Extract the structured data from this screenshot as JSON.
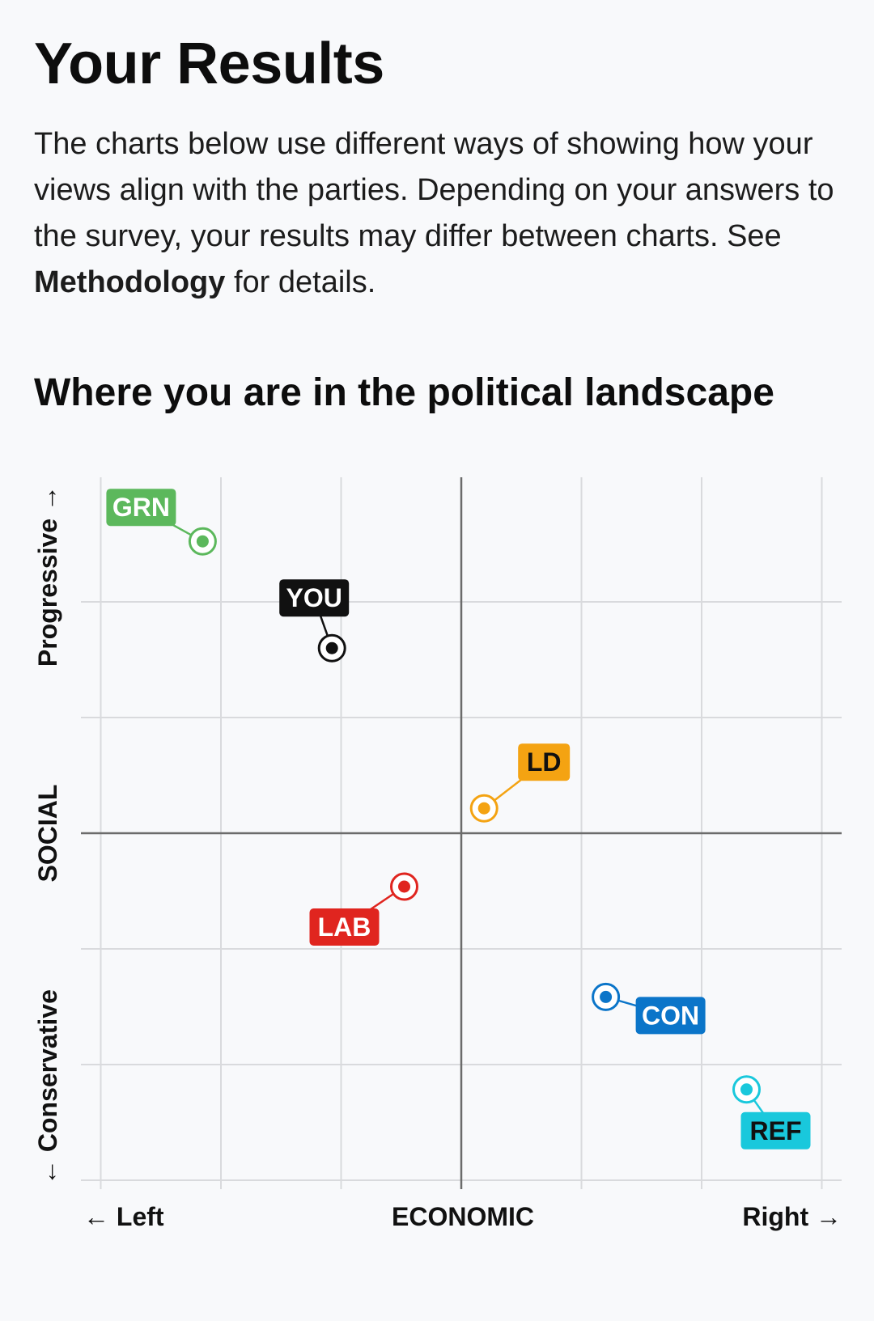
{
  "header": {
    "title": "Your Results",
    "intro_before": "The charts below use different ways of showing how your views align with the parties. Depending on your answers to the survey, your results may differ between charts. See ",
    "intro_link": "Methodology",
    "intro_after": " for details."
  },
  "section": {
    "title": "Where you are in the political landscape"
  },
  "chart_data": {
    "type": "scatter",
    "title": "Where you are in the political landscape",
    "xlabel": "ECONOMIC",
    "ylabel": "SOCIAL",
    "x_left_label": "← Left",
    "x_right_label": "Right →",
    "y_top_label": "Progressive →",
    "y_bottom_label": "← Conservative",
    "xlim": [
      -10,
      10
    ],
    "ylim": [
      -10,
      10
    ],
    "grid": true,
    "points": [
      {
        "label": "GRN",
        "x": -6.8,
        "y": 8.2,
        "color": "#5cb85c"
      },
      {
        "label": "YOU",
        "x": -3.4,
        "y": 5.2,
        "color": "#111111"
      },
      {
        "label": "LD",
        "x": 0.6,
        "y": 0.7,
        "color": "#f4a312"
      },
      {
        "label": "LAB",
        "x": -1.5,
        "y": -1.5,
        "color": "#e0251f"
      },
      {
        "label": "CON",
        "x": 3.8,
        "y": -4.6,
        "color": "#0b75c9"
      },
      {
        "label": "REF",
        "x": 7.5,
        "y": -7.2,
        "color": "#19c8dc"
      }
    ]
  }
}
